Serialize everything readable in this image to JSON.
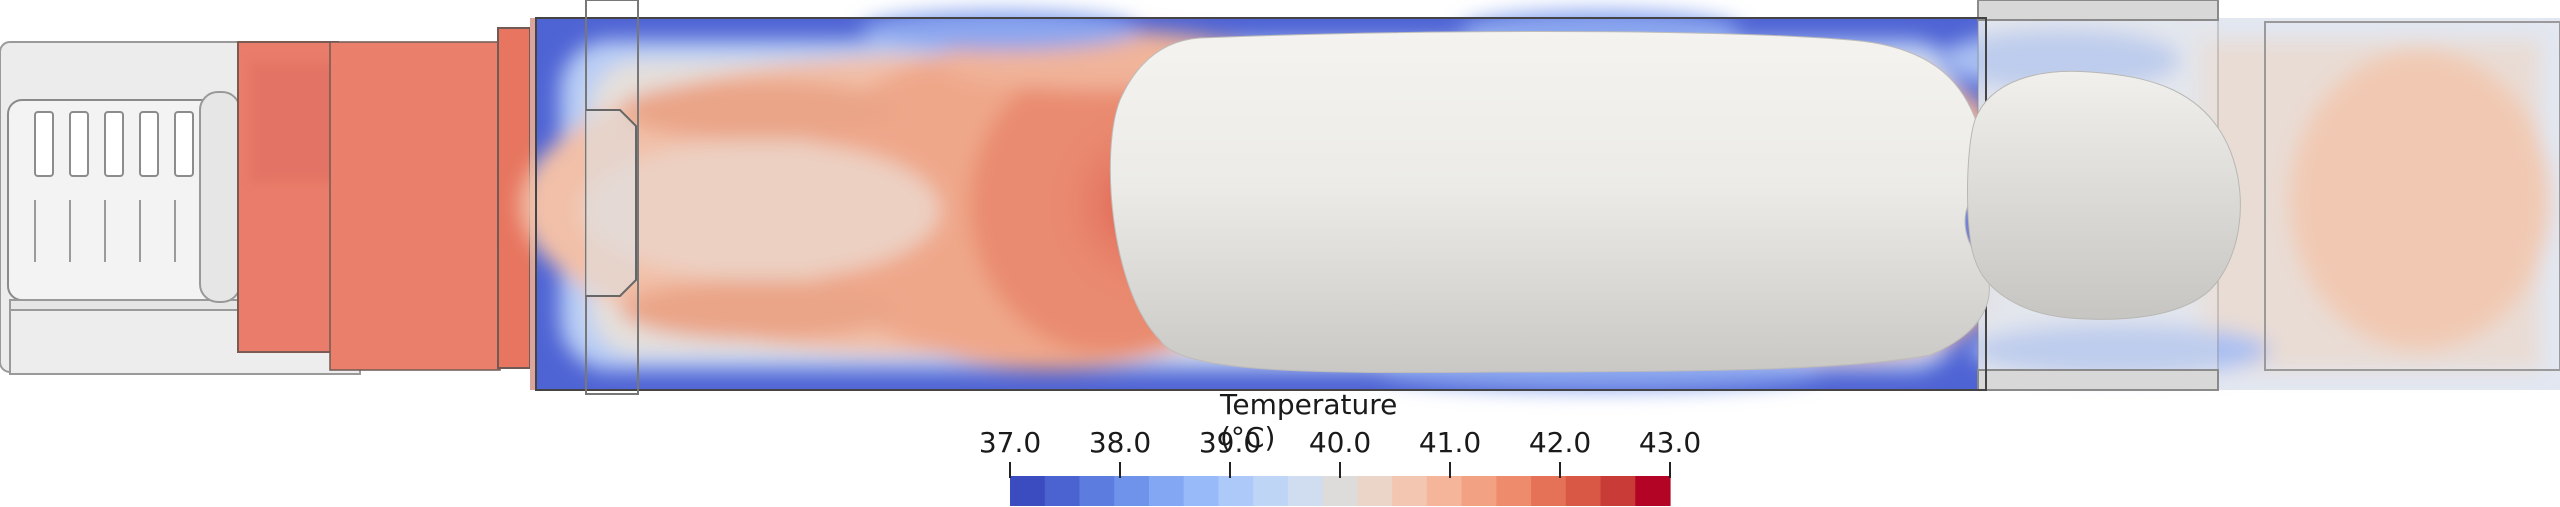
{
  "colorbar": {
    "title": "Temperature (°C)",
    "ticks": [
      "37.0",
      "38.0",
      "39.0",
      "40.0",
      "41.0",
      "42.0",
      "43.0"
    ],
    "min": 37.0,
    "max": 43.0,
    "colors": [
      "#3b4cc0",
      "#4b63d1",
      "#5d7ce0",
      "#6f92eb",
      "#84a7f3",
      "#98baf8",
      "#acc9fa",
      "#bfd5f6",
      "#d0dcef",
      "#dddcdb",
      "#ead5c8",
      "#f2c6b1",
      "#f5b59a",
      "#f3a183",
      "#ee8b6c",
      "#e57257",
      "#d85745",
      "#c93b36",
      "#b40426"
    ]
  },
  "scene": {
    "field_colors": {
      "cold": "#5b6fd6",
      "cool": "#b8cdf5",
      "neutral": "#e5e0dc",
      "warm": "#f2b9a0",
      "hot": "#e9846d",
      "hottest": "#dd6253",
      "inlet": "#e97c6a",
      "body": "#ecebe8"
    }
  }
}
